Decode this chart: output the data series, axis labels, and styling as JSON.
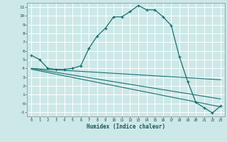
{
  "xlabel": "Humidex (Indice chaleur)",
  "bg_color": "#cde8e8",
  "grid_color": "#ffffff",
  "line_color": "#1a7070",
  "line1_x": [
    0,
    1,
    2,
    3,
    4,
    5,
    6,
    7,
    8,
    9,
    10,
    11,
    12,
    13,
    14,
    15,
    16,
    17,
    18,
    19,
    20,
    21,
    22,
    23
  ],
  "line1_y": [
    5.5,
    5.0,
    4.0,
    3.9,
    3.9,
    4.0,
    4.3,
    6.3,
    7.7,
    8.6,
    9.9,
    9.9,
    10.5,
    11.2,
    10.7,
    10.7,
    9.9,
    8.9,
    5.3,
    2.5,
    0.1,
    -0.5,
    -1.1,
    -0.3
  ],
  "line2_x": [
    0,
    23
  ],
  "line2_y": [
    4.0,
    2.7
  ],
  "line3_x": [
    0,
    23
  ],
  "line3_y": [
    4.0,
    0.5
  ],
  "line4_x": [
    0,
    23
  ],
  "line4_y": [
    3.9,
    -0.4
  ],
  "xlim": [
    -0.5,
    23.5
  ],
  "ylim": [
    -1.5,
    11.5
  ],
  "xticks": [
    0,
    1,
    2,
    3,
    4,
    5,
    6,
    7,
    8,
    9,
    10,
    11,
    12,
    13,
    14,
    15,
    16,
    17,
    18,
    19,
    20,
    21,
    22,
    23
  ],
  "yticks": [
    -1,
    0,
    1,
    2,
    3,
    4,
    5,
    6,
    7,
    8,
    9,
    10,
    11
  ]
}
